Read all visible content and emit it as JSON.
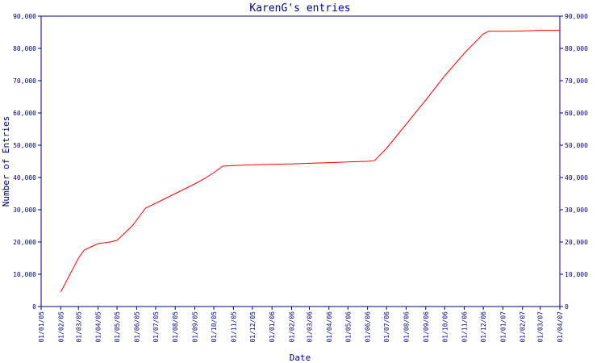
{
  "chart_data": {
    "type": "line",
    "title": "KarenG's entries",
    "xlabel": "Date",
    "ylabel": "Number of Entries",
    "x_ticks": [
      "01/01/05",
      "01/02/05",
      "01/03/05",
      "01/04/05",
      "01/05/05",
      "01/06/05",
      "01/07/05",
      "01/08/05",
      "01/09/05",
      "01/10/05",
      "01/11/05",
      "01/12/05",
      "01/01/06",
      "01/02/06",
      "01/03/06",
      "01/04/06",
      "01/05/06",
      "01/06/06",
      "01/07/06",
      "01/08/06",
      "01/09/06",
      "01/10/06",
      "01/11/06",
      "01/12/06",
      "01/01/07",
      "01/02/07",
      "01/03/07",
      "01/04/07"
    ],
    "y_ticks": [
      "0",
      "10,000",
      "20,000",
      "30,000",
      "40,000",
      "50,000",
      "60,000",
      "70,000",
      "80,000",
      "90,000"
    ],
    "ylim": [
      0,
      90000
    ],
    "y_tick_values": [
      0,
      10000,
      20000,
      30000,
      40000,
      50000,
      60000,
      70000,
      80000,
      90000
    ],
    "grid": false,
    "series": [
      {
        "color": "#ff0000",
        "points": [
          {
            "x": "2005-02-01",
            "y": 4500
          },
          {
            "x": "2005-03-01",
            "y": 15000
          },
          {
            "x": "2005-03-10",
            "y": 17500
          },
          {
            "x": "2005-04-01",
            "y": 19500
          },
          {
            "x": "2005-04-20",
            "y": 20000
          },
          {
            "x": "2005-05-01",
            "y": 20500
          },
          {
            "x": "2005-05-25",
            "y": 25000
          },
          {
            "x": "2005-06-15",
            "y": 30500
          },
          {
            "x": "2005-07-01",
            "y": 32000
          },
          {
            "x": "2005-08-01",
            "y": 35000
          },
          {
            "x": "2005-09-01",
            "y": 38000
          },
          {
            "x": "2005-09-15",
            "y": 39500
          },
          {
            "x": "2005-10-01",
            "y": 41500
          },
          {
            "x": "2005-10-15",
            "y": 43500
          },
          {
            "x": "2005-11-01",
            "y": 43700
          },
          {
            "x": "2005-12-01",
            "y": 43900
          },
          {
            "x": "2006-01-01",
            "y": 44100
          },
          {
            "x": "2006-02-01",
            "y": 44200
          },
          {
            "x": "2006-03-01",
            "y": 44400
          },
          {
            "x": "2006-04-01",
            "y": 44600
          },
          {
            "x": "2006-05-01",
            "y": 44800
          },
          {
            "x": "2006-06-01",
            "y": 45000
          },
          {
            "x": "2006-06-12",
            "y": 45200
          },
          {
            "x": "2006-07-01",
            "y": 49000
          },
          {
            "x": "2006-08-01",
            "y": 56500
          },
          {
            "x": "2006-09-01",
            "y": 64000
          },
          {
            "x": "2006-10-01",
            "y": 71500
          },
          {
            "x": "2006-11-01",
            "y": 78500
          },
          {
            "x": "2006-12-01",
            "y": 84500
          },
          {
            "x": "2006-12-10",
            "y": 85300
          },
          {
            "x": "2007-01-01",
            "y": 85300
          },
          {
            "x": "2007-02-01",
            "y": 85400
          },
          {
            "x": "2007-03-01",
            "y": 85600
          },
          {
            "x": "2007-04-01",
            "y": 85600
          }
        ]
      }
    ],
    "colors": {
      "axis": "#000080",
      "text": "#000080",
      "background": "#ffffff"
    }
  }
}
